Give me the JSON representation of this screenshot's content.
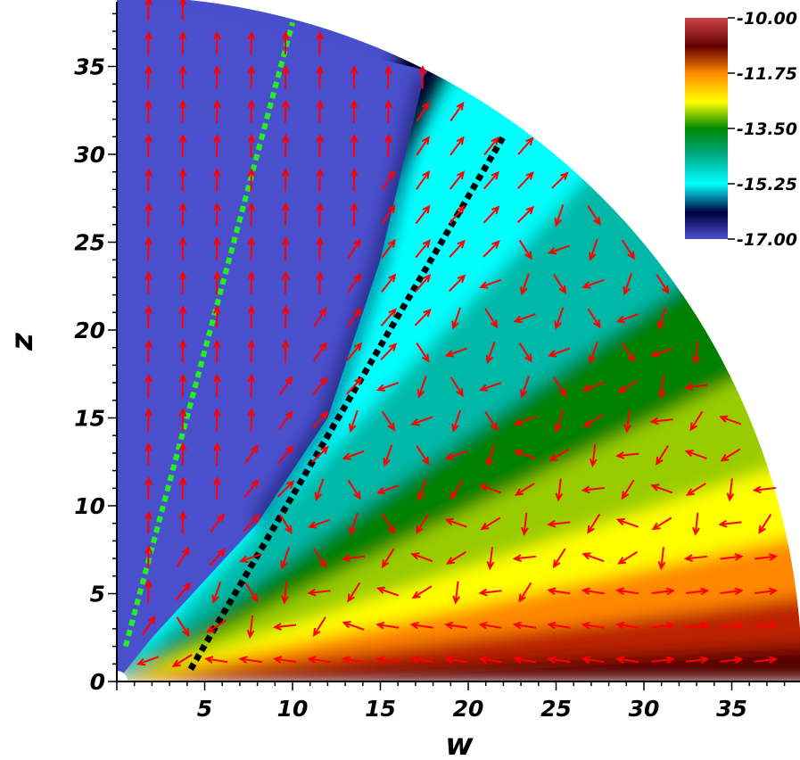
{
  "chart_data": {
    "type": "heatmap",
    "xlabel": "w",
    "ylabel": "z",
    "xlim": [
      0,
      39
    ],
    "ylim": [
      0,
      39
    ],
    "x_ticks": [
      "5",
      "10",
      "15",
      "20",
      "25",
      "30",
      "35"
    ],
    "x_tick_values": [
      5,
      10,
      15,
      20,
      25,
      30,
      35
    ],
    "y_ticks": [
      "0",
      "5",
      "10",
      "15",
      "20",
      "25",
      "30",
      "35"
    ],
    "y_tick_values": [
      0,
      5,
      10,
      15,
      20,
      25,
      30,
      35
    ],
    "domain_radius": 39,
    "colorbar": {
      "labels": [
        "-10.00",
        "-11.75",
        "-13.50",
        "-15.25",
        "-17.00"
      ],
      "values": [
        -10.0,
        -11.75,
        -13.5,
        -15.25,
        -17.0
      ],
      "range": [
        -17.0,
        -10.0
      ]
    },
    "colors": {
      "low": "#4a4fcc",
      "mid_dark": "#000030",
      "cyan": "#00ffff",
      "green": "#008000",
      "yellow": "#ffff00",
      "orange": "#ff8800",
      "dark_red": "#550000",
      "high": "#cc4444",
      "vector_color": "#ff0000",
      "green_line_color": "#22ee22",
      "black_line_color": "#000000"
    },
    "green_dotted_line": {
      "from": [
        0.5,
        2
      ],
      "to": [
        10,
        37.5
      ]
    },
    "black_dotted_line": {
      "from": [
        4.2,
        0.7
      ],
      "to": [
        22,
        31
      ]
    },
    "vectors": "velocity field arrows"
  }
}
